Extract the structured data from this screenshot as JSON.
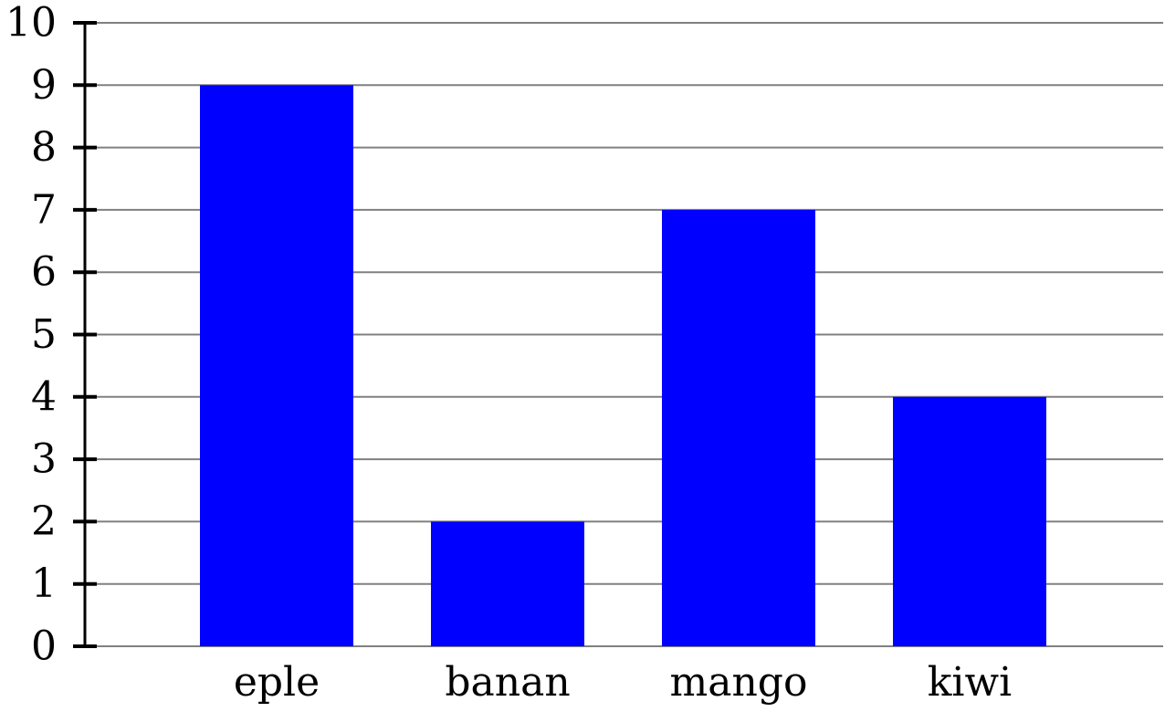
{
  "colors": {
    "bar": "#0000ff",
    "grid": "#808080",
    "axis": "#000000",
    "background": "#ffffff"
  },
  "chart_data": {
    "type": "bar",
    "categories": [
      "eple",
      "banan",
      "mango",
      "kiwi"
    ],
    "values": [
      9,
      2,
      7,
      4
    ],
    "title": "",
    "xlabel": "",
    "ylabel": "",
    "ylim": [
      0,
      10
    ],
    "yticks": [
      0,
      1,
      2,
      3,
      4,
      5,
      6,
      7,
      8,
      9,
      10
    ],
    "ytick_labels": [
      "0",
      "1",
      "2",
      "3",
      "4",
      "5",
      "6",
      "7",
      "8",
      "9",
      "10"
    ],
    "grid": true,
    "grid_axis": "y",
    "legend": false
  }
}
